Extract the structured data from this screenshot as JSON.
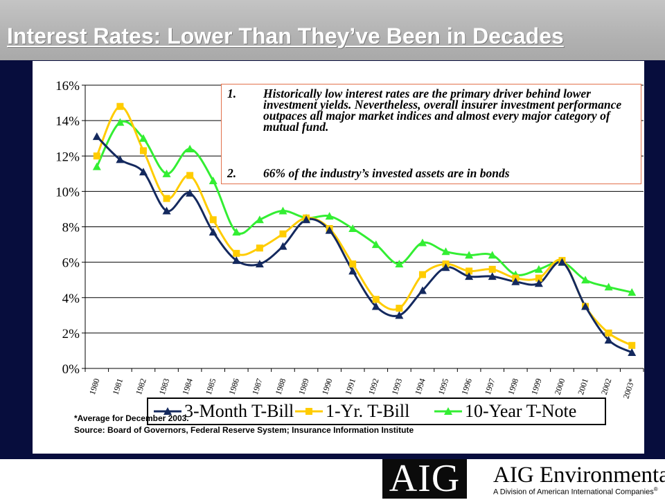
{
  "slide": {
    "title": "Interest Rates: Lower Than They’ve Been in Decades",
    "bullets": [
      {
        "num": "1.",
        "text": "Historically low interest rates are the primary driver behind lower investment yields.  Nevertheless, overall insurer investment performance outpaces all major market indices and almost every major category of mutual fund."
      },
      {
        "num": "2.",
        "text": "66% of the industry’s invested assets are in bonds"
      }
    ],
    "footnote": "*Average for December 2003.",
    "source": "Source:  Board of Governors, Federal Reserve System; Insurance Information Institute",
    "logo": {
      "mark": "AIG",
      "name": "AIG Environmental",
      "sub": "A Division of American International Companies"
    },
    "colors": {
      "background": "#070d3d",
      "title": "#ffffff",
      "note_border": "#e2704a"
    }
  },
  "chart_data": {
    "type": "line",
    "categories": [
      "1980",
      "1981",
      "1982",
      "1983",
      "1984",
      "1985",
      "1986",
      "1987",
      "1988",
      "1989",
      "1990",
      "1991",
      "1992",
      "1993",
      "1994",
      "1995",
      "1996",
      "1997",
      "1998",
      "1999",
      "2000",
      "2001",
      "2002",
      "2003*"
    ],
    "y_tick_labels": [
      "0%",
      "2%",
      "4%",
      "6%",
      "8%",
      "10%",
      "12%",
      "14%",
      "16%"
    ],
    "ylim": [
      0,
      16
    ],
    "grid": true,
    "legend_position": "bottom",
    "series": [
      {
        "name": "3-Month T-Bill",
        "color": "#14295e",
        "marker": "triangle",
        "values": [
          13.1,
          11.8,
          11.1,
          8.9,
          9.9,
          7.7,
          6.1,
          5.9,
          6.9,
          8.4,
          7.8,
          5.5,
          3.5,
          3.0,
          4.4,
          5.7,
          5.2,
          5.2,
          4.9,
          4.8,
          6.0,
          3.5,
          1.6,
          0.9
        ]
      },
      {
        "name": "1-Yr. T-Bill",
        "color": "#ffcc00",
        "marker": "square",
        "values": [
          12.0,
          14.8,
          12.3,
          9.6,
          10.9,
          8.4,
          6.5,
          6.8,
          7.6,
          8.5,
          7.9,
          5.9,
          3.9,
          3.4,
          5.3,
          5.9,
          5.5,
          5.6,
          5.1,
          5.1,
          6.1,
          3.5,
          2.0,
          1.3
        ]
      },
      {
        "name": "10-Year T-Note",
        "color": "#33ee33",
        "marker": "triangle",
        "values": [
          11.4,
          13.9,
          13.0,
          11.0,
          12.4,
          10.6,
          7.7,
          8.4,
          8.9,
          8.5,
          8.6,
          7.9,
          7.0,
          5.9,
          7.1,
          6.6,
          6.4,
          6.4,
          5.3,
          5.6,
          6.0,
          5.0,
          4.6,
          4.3
        ]
      }
    ]
  }
}
